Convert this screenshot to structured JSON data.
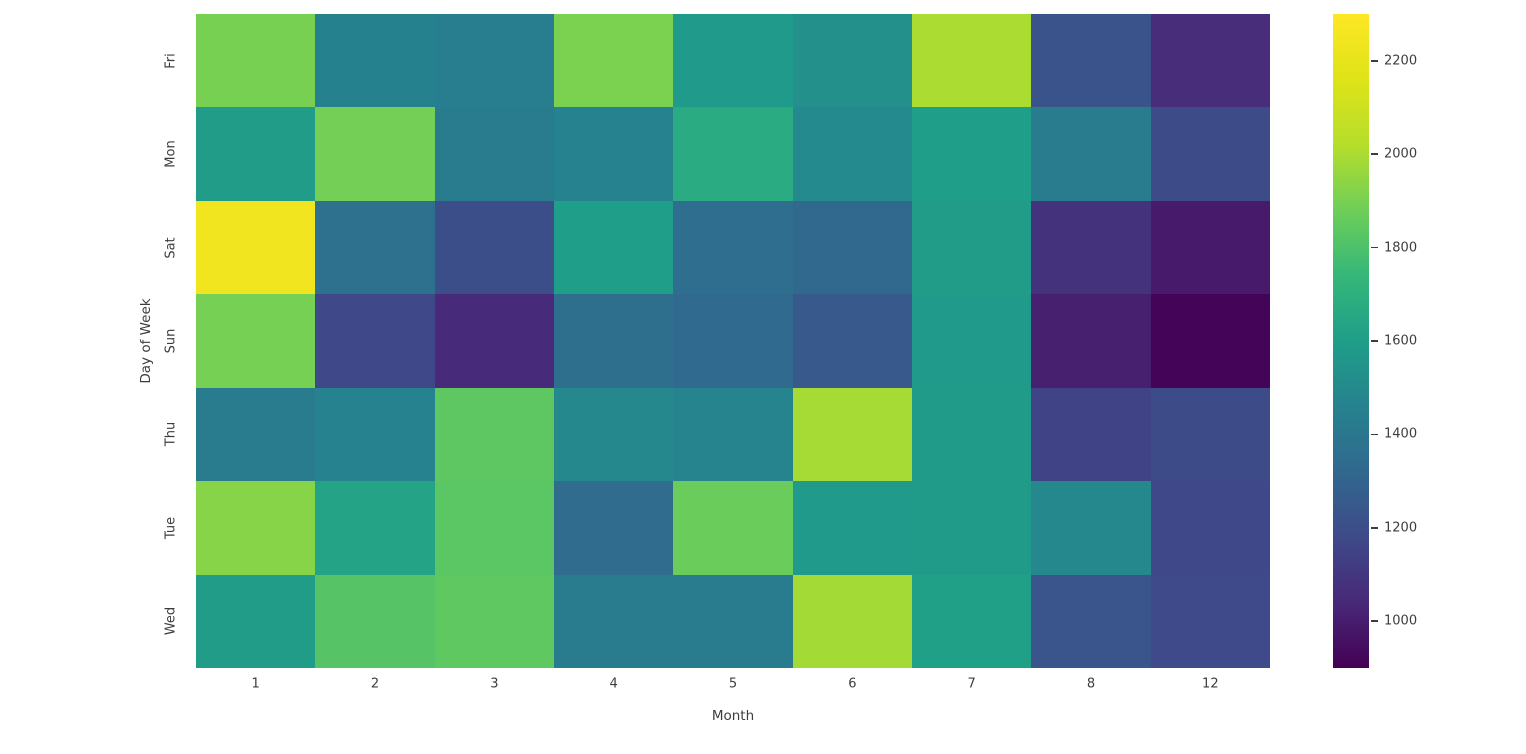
{
  "chart_data": {
    "type": "heatmap",
    "title": "",
    "xlabel": "Month",
    "ylabel": "Day of Week",
    "x_categories": [
      "1",
      "2",
      "3",
      "4",
      "5",
      "6",
      "7",
      "8",
      "12"
    ],
    "y_categories": [
      "Fri",
      "Mon",
      "Sat",
      "Sun",
      "Thu",
      "Tue",
      "Wed"
    ],
    "values": [
      [
        1900,
        1455,
        1440,
        1905,
        1580,
        1530,
        2000,
        1220,
        1060
      ],
      [
        1590,
        1890,
        1430,
        1460,
        1670,
        1500,
        1600,
        1420,
        1190
      ],
      [
        2240,
        1370,
        1200,
        1600,
        1350,
        1320,
        1590,
        1080,
        990
      ],
      [
        1895,
        1170,
        1050,
        1360,
        1330,
        1250,
        1580,
        1010,
        910
      ],
      [
        1430,
        1460,
        1840,
        1490,
        1470,
        1990,
        1585,
        1150,
        1190
      ],
      [
        1930,
        1630,
        1830,
        1340,
        1870,
        1580,
        1585,
        1490,
        1170
      ],
      [
        1590,
        1820,
        1845,
        1420,
        1430,
        1985,
        1610,
        1230,
        1180
      ]
    ],
    "vmin": 900,
    "vmax": 2300,
    "colormap": "viridis",
    "colormap_stops": [
      "#440154",
      "#482878",
      "#3e4a89",
      "#31688e",
      "#26828e",
      "#1f9e89",
      "#35b779",
      "#6ece58",
      "#b5de2b",
      "#dfe318",
      "#fde725"
    ],
    "colorbar_ticks": [
      1000,
      1200,
      1400,
      1600,
      1800,
      2000,
      2200
    ],
    "legend_position": "right",
    "grid": false,
    "text_color": "#3d3d3d",
    "background_color": "#ffffff"
  }
}
